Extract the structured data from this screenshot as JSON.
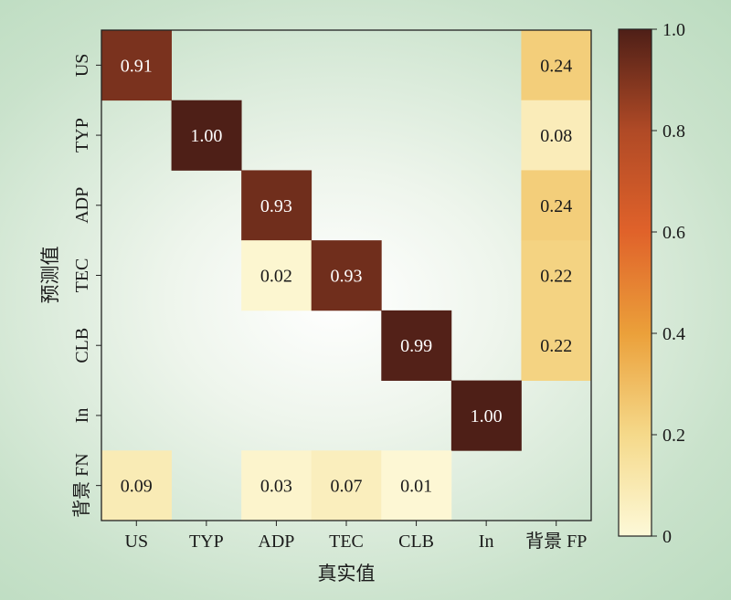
{
  "chart_data": {
    "type": "heatmap",
    "title": "",
    "xlabel": "真实值",
    "ylabel": "预测值",
    "x_categories": [
      "US",
      "TYP",
      "ADP",
      "TEC",
      "CLB",
      "In",
      "背景 FP"
    ],
    "y_categories": [
      "US",
      "TYP",
      "ADP",
      "TEC",
      "CLB",
      "In",
      "背景 FN"
    ],
    "values": [
      [
        0.91,
        null,
        null,
        null,
        null,
        null,
        0.24
      ],
      [
        null,
        1.0,
        null,
        null,
        null,
        null,
        0.08
      ],
      [
        null,
        null,
        0.93,
        null,
        null,
        null,
        0.24
      ],
      [
        null,
        null,
        0.02,
        0.93,
        null,
        null,
        0.22
      ],
      [
        null,
        null,
        null,
        null,
        0.99,
        null,
        0.22
      ],
      [
        null,
        null,
        null,
        null,
        null,
        1.0,
        null
      ],
      [
        0.09,
        null,
        0.03,
        0.07,
        0.01,
        null,
        null
      ]
    ],
    "colorbar": {
      "range": [
        0,
        1.0
      ],
      "ticks": [
        0,
        0.2,
        0.4,
        0.6,
        0.8,
        1.0
      ],
      "tick_labels": [
        "0",
        "0.2",
        "0.4",
        "0.6",
        "0.8",
        "1.0"
      ],
      "colormap": "YlOrBr-like (light cream to dark brown)",
      "colors": [
        "#fdf9d8",
        "#f5d98a",
        "#eba03a",
        "#e0622a",
        "#b04a26",
        "#4e1f17"
      ]
    },
    "grid": false,
    "background_color": "#c9e2cb"
  }
}
